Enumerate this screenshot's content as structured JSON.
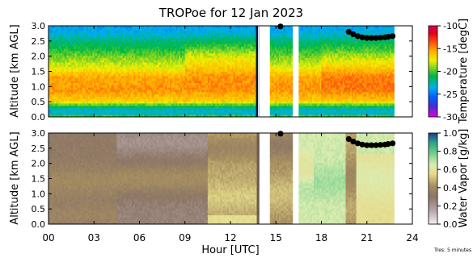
{
  "title": "TROPoe for 12 Jan 2023",
  "xlabel": "Hour [UTC]",
  "footnote": "Tres: 5 minutes",
  "chart_data": [
    {
      "type": "heatmap",
      "panel": "temperature",
      "ylabel": "Altitude [km AGL]",
      "xlim": [
        0,
        24
      ],
      "ylim": [
        0,
        3
      ],
      "x_ticks": [
        "00",
        "03",
        "06",
        "09",
        "12",
        "15",
        "18",
        "21",
        "24"
      ],
      "y_ticks": [
        "0.0",
        "0.5",
        "1.0",
        "1.5",
        "2.0",
        "2.5",
        "3.0"
      ],
      "colorbar": {
        "label": "Temperature [degC]",
        "range": [
          -30,
          -10
        ],
        "ticks": [
          "-10",
          "-15",
          "-20",
          "-25",
          "-30"
        ]
      },
      "gaps_hours": [
        [
          13.9,
          14.6
        ],
        [
          16.1,
          16.5
        ],
        [
          22.8,
          24
        ]
      ],
      "layers_km_degC": [
        {
          "z": 0.0,
          "t": -19
        },
        {
          "z": 0.15,
          "t": -24
        },
        {
          "z": 0.35,
          "t": -21
        },
        {
          "z": 0.55,
          "t": -16.5
        },
        {
          "z": 0.9,
          "t": -15
        },
        {
          "z": 1.3,
          "t": -15.5
        },
        {
          "z": 1.7,
          "t": -18
        },
        {
          "z": 2.1,
          "t": -20
        },
        {
          "z": 2.5,
          "t": -22
        },
        {
          "z": 2.8,
          "t": -23.5
        },
        {
          "z": 3.0,
          "t": -24
        }
      ],
      "markers": {
        "hours": [
          15.3,
          19.8,
          20.1,
          20.4,
          20.7,
          21.0,
          21.3,
          21.6,
          21.9,
          22.2,
          22.4,
          22.7
        ],
        "km": [
          2.98,
          2.8,
          2.72,
          2.66,
          2.62,
          2.6,
          2.6,
          2.6,
          2.61,
          2.62,
          2.64,
          2.66
        ]
      }
    },
    {
      "type": "heatmap",
      "panel": "water_vapor",
      "ylabel": "Altitude [km AGL]",
      "xlim": [
        0,
        24
      ],
      "ylim": [
        0,
        3
      ],
      "x_ticks": [
        "00",
        "03",
        "06",
        "09",
        "12",
        "15",
        "18",
        "21",
        "24"
      ],
      "y_ticks": [
        "0.0",
        "0.5",
        "1.0",
        "1.5",
        "2.0",
        "2.5",
        "3.0"
      ],
      "colorbar": {
        "label": "Water Vapor [g/kg]",
        "range": [
          0,
          1
        ],
        "ticks": [
          "1.0",
          "0.8",
          "0.6",
          "0.4",
          "0.2",
          "0.0"
        ]
      },
      "gaps_hours": [
        [
          13.9,
          14.6
        ],
        [
          16.1,
          16.5
        ],
        [
          22.8,
          24
        ]
      ],
      "markers": {
        "hours": [
          15.3,
          19.8,
          20.1,
          20.4,
          20.7,
          21.0,
          21.3,
          21.6,
          21.9,
          22.2,
          22.4,
          22.7
        ],
        "km": [
          2.98,
          2.8,
          2.72,
          2.66,
          2.62,
          2.6,
          2.6,
          2.6,
          2.61,
          2.62,
          2.64,
          2.66
        ]
      }
    }
  ]
}
